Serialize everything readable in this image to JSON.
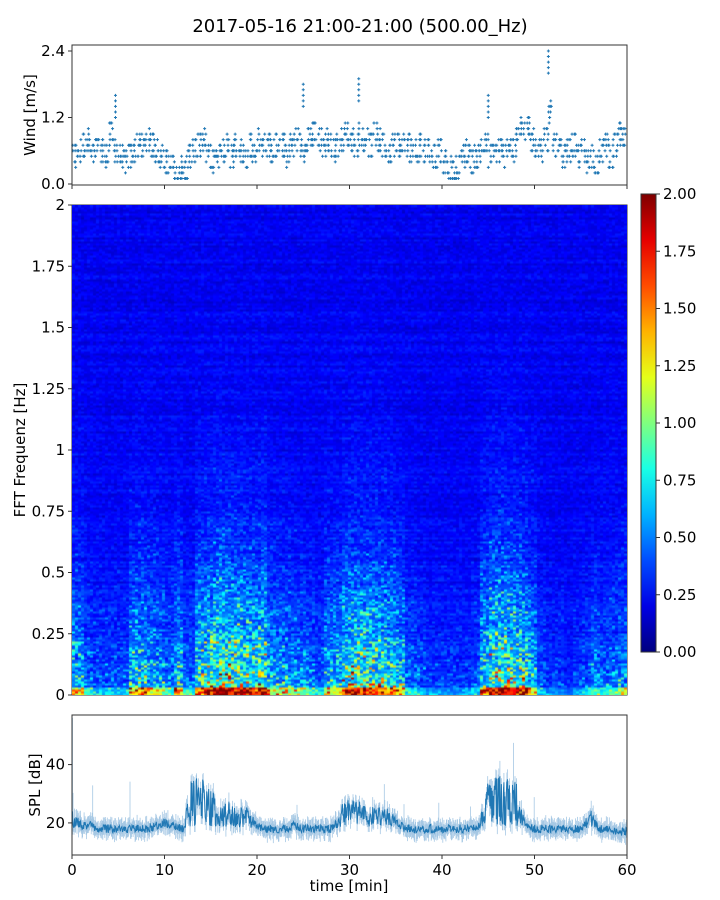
{
  "title": "2017-05-16 21:00-21:00 (500.00_Hz)",
  "chart_data": [
    {
      "type": "scatter",
      "ylabel": "Wind [m/s]",
      "xlim": [
        0,
        60
      ],
      "ylim": [
        0,
        2.5
      ],
      "yticks": [
        "0.0",
        "1.2",
        "2.4"
      ],
      "color": "#1f77b4",
      "marker": "+",
      "x_step_min": 0.5,
      "values": [
        0.5,
        0.6,
        0.7,
        0.8,
        0.5,
        0.6,
        0.6,
        0.5,
        0.9,
        0.6,
        0.5,
        0.4,
        0.5,
        0.6,
        0.7,
        0.7,
        0.8,
        0.7,
        0.6,
        0.5,
        0.4,
        0.3,
        0.2,
        0.3,
        0.3,
        0.5,
        0.6,
        0.7,
        0.8,
        0.5,
        0.4,
        0.5,
        0.6,
        0.7,
        0.5,
        0.7,
        0.6,
        0.5,
        0.7,
        0.6,
        0.8,
        0.7,
        0.7,
        0.6,
        0.7,
        0.7,
        0.5,
        0.7,
        0.8,
        0.7,
        0.6,
        0.8,
        0.9,
        0.8,
        0.7,
        0.8,
        0.6,
        0.7,
        0.8,
        0.9,
        0.8,
        0.7,
        0.9,
        0.8,
        0.7,
        0.9,
        0.8,
        0.7,
        0.6,
        0.7,
        0.7,
        0.7,
        0.7,
        0.6,
        0.6,
        0.7,
        0.6,
        0.6,
        0.5,
        0.6,
        0.4,
        0.3,
        0.2,
        0.3,
        0.5,
        0.6,
        0.4,
        0.5,
        0.6,
        0.7,
        0.5,
        0.6,
        0.6,
        0.5,
        0.7,
        0.6,
        0.8,
        1.0,
        1.0,
        0.8,
        0.7,
        0.6,
        0.8,
        1.3,
        0.7,
        0.6,
        0.5,
        0.6,
        0.7,
        0.5,
        0.6,
        0.4,
        0.5,
        0.4,
        0.6,
        0.7,
        0.5,
        0.7,
        0.9,
        0.8
      ],
      "peaks": [
        {
          "x": 4.7,
          "y": 1.6
        },
        {
          "x": 25.0,
          "y": 1.8
        },
        {
          "x": 31.0,
          "y": 1.9
        },
        {
          "x": 51.5,
          "y": 2.4
        },
        {
          "x": 45.0,
          "y": 1.6
        }
      ]
    },
    {
      "type": "heatmap",
      "ylabel": "FFT Frequenz [Hz]",
      "xlim": [
        0,
        60
      ],
      "ylim": [
        0,
        2
      ],
      "yticks": [
        "0",
        "0.25",
        "0.5",
        "0.75",
        "1",
        "1.25",
        "1.5",
        "1.75",
        "2"
      ],
      "colormap": "jet",
      "colorbar": {
        "range": [
          0,
          2
        ],
        "ticks": [
          "0.00",
          "0.25",
          "0.50",
          "0.75",
          "1.00",
          "1.25",
          "1.50",
          "1.75",
          "2.00"
        ]
      },
      "low_band_level_per_min": [
        0.9,
        0.5,
        0.4,
        0.4,
        0.4,
        0.4,
        1.0,
        1.1,
        0.9,
        0.8,
        0.6,
        1.0,
        0.5,
        1.3,
        1.5,
        1.8,
        1.7,
        1.6,
        1.5,
        1.4,
        1.6,
        0.9,
        0.8,
        0.8,
        0.7,
        0.6,
        0.5,
        0.9,
        1.0,
        1.4,
        1.6,
        1.5,
        1.5,
        1.4,
        1.2,
        1.0,
        0.5,
        0.4,
        0.3,
        0.3,
        0.3,
        0.3,
        0.3,
        0.4,
        1.2,
        1.6,
        1.7,
        1.6,
        1.4,
        1.0,
        0.4,
        0.3,
        0.3,
        0.2,
        0.3,
        0.4,
        0.6,
        0.5,
        0.6,
        0.7
      ]
    },
    {
      "type": "line",
      "xlabel": "time [min]",
      "ylabel": "SPL [dB]",
      "xlim": [
        0,
        60
      ],
      "ylim": [
        9,
        57
      ],
      "xticks": [
        "0",
        "10",
        "20",
        "30",
        "40",
        "50",
        "60"
      ],
      "yticks": [
        "20",
        "40"
      ],
      "color": "#1f77b4",
      "mean_per_min": [
        22,
        19,
        19,
        18,
        18,
        18,
        18,
        18,
        18,
        19,
        20,
        19,
        18,
        28,
        27,
        26,
        22,
        23,
        22,
        22,
        19,
        18,
        18,
        18,
        19,
        18,
        18,
        18,
        18,
        22,
        24,
        23,
        22,
        22,
        22,
        20,
        18,
        18,
        18,
        18,
        18,
        18,
        18,
        18,
        19,
        27,
        28,
        27,
        27,
        19,
        18,
        18,
        18,
        18,
        18,
        18,
        22,
        18,
        18,
        17,
        17
      ]
    }
  ]
}
